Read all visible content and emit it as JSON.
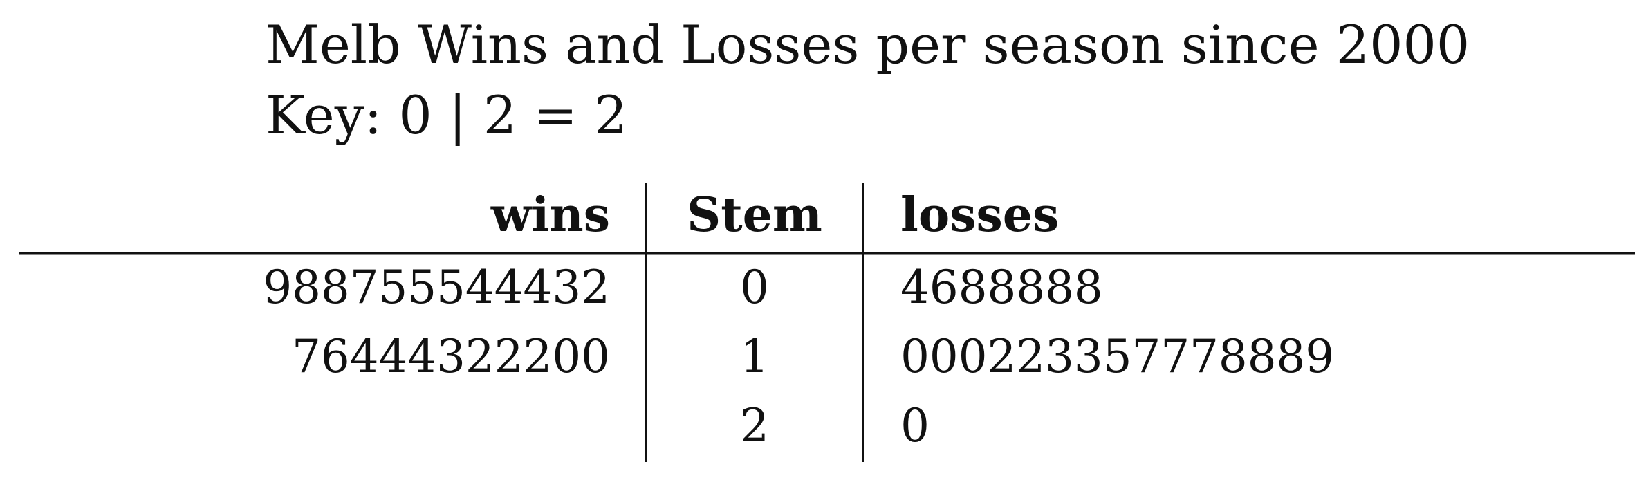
{
  "chart_data": {
    "type": "table",
    "title": "Melb Wins and Losses per season since 2000",
    "key": "Key: 0 | 2 = 2",
    "headers": {
      "left": "wins",
      "stem": "Stem",
      "right": "losses"
    },
    "rows": [
      {
        "stem": "0",
        "wins": [
          "9",
          "8",
          "8",
          "7",
          "5",
          "5",
          "5",
          "4",
          "4",
          "4",
          "3",
          "2"
        ],
        "losses": [
          "4",
          "6",
          "8",
          "8",
          "8",
          "8",
          "8"
        ]
      },
      {
        "stem": "1",
        "wins": [
          "7",
          "6",
          "4",
          "4",
          "4",
          "3",
          "2",
          "2",
          "2",
          "0",
          "0"
        ],
        "losses": [
          "0",
          "0",
          "0",
          "2",
          "2",
          "3",
          "3",
          "5",
          "7",
          "7",
          "7",
          "8",
          "8",
          "8",
          "9"
        ]
      },
      {
        "stem": "2",
        "wins": [],
        "losses": [
          "0"
        ]
      }
    ]
  }
}
